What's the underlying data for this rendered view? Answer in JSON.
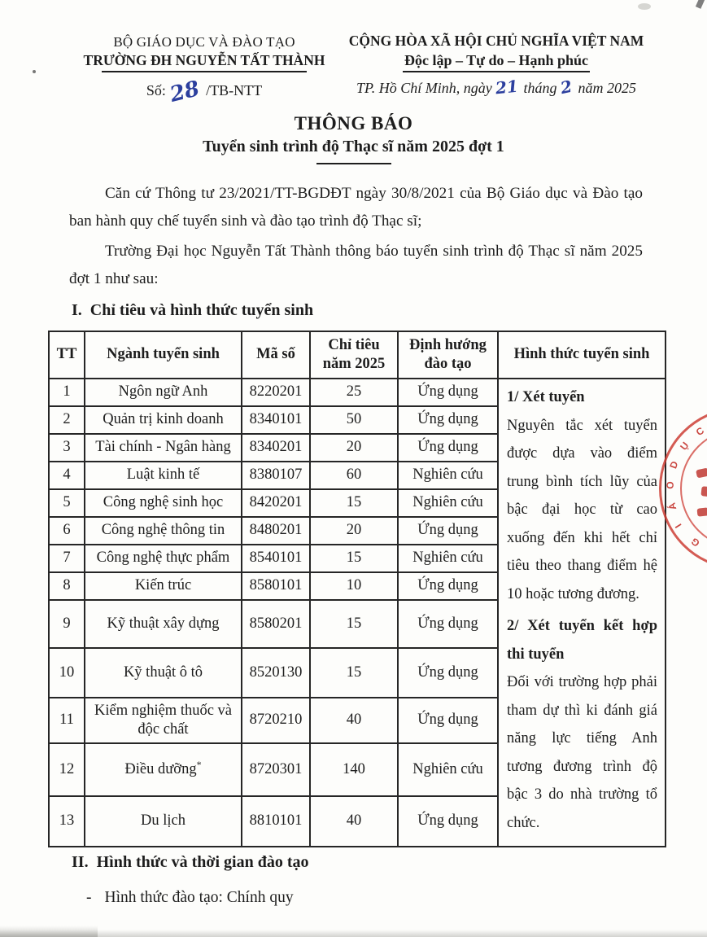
{
  "header": {
    "org": {
      "ministry": "BỘ GIÁO DỤC VÀ ĐÀO TẠO",
      "university": "TRƯỜNG ĐH NGUYỄN TẤT THÀNH",
      "doc_no_prefix": "Số:",
      "doc_no_handwritten": "28",
      "doc_no_suffix": "/TB-NTT"
    },
    "national": {
      "motto_line1": "CỘNG HÒA XÃ HỘI CHỦ NGHĨA VIỆT NAM",
      "motto_line2": "Độc lập – Tự do – Hạnh phúc",
      "date_prefix": "TP. Hồ Chí Minh, ngày",
      "date_day": "21",
      "date_mid": "tháng",
      "date_month": "2",
      "date_suffix": "năm 2025"
    }
  },
  "title": {
    "main": "THÔNG BÁO",
    "subtitle": "Tuyển sinh trình độ Thạc sĩ năm 2025 đợt 1"
  },
  "intro_paragraphs": [
    "Căn cứ Thông tư 23/2021/TT-BGDĐT ngày 30/8/2021 của Bộ Giáo dục và Đào tạo ban hành quy chế tuyển sinh và đào tạo trình độ Thạc sĩ;",
    "Trường Đại học Nguyễn Tất Thành thông báo tuyển sinh trình độ Thạc sĩ năm 2025 đợt 1 như sau:"
  ],
  "section_1": {
    "heading_number": "I.",
    "heading_text": "Chỉ tiêu và hình thức tuyển sinh"
  },
  "table": {
    "headers": {
      "tt": "TT",
      "nganh": "Ngành tuyển sinh",
      "ma_so": "Mã số",
      "chi_tieu": "Chỉ tiêu năm 2025",
      "dinh_huong": "Định hướng đào tạo",
      "hinh_thuc": "Hình thức tuyển sinh"
    },
    "rows": [
      {
        "tt": "1",
        "nganh": "Ngôn ngữ Anh",
        "ma_so": "8220201",
        "chi_tieu": "25",
        "dinh_huong": "Ứng dụng"
      },
      {
        "tt": "2",
        "nganh": "Quản trị kinh doanh",
        "ma_so": "8340101",
        "chi_tieu": "50",
        "dinh_huong": "Ứng dụng"
      },
      {
        "tt": "3",
        "nganh": "Tài chính - Ngân hàng",
        "ma_so": "8340201",
        "chi_tieu": "20",
        "dinh_huong": "Ứng dụng"
      },
      {
        "tt": "4",
        "nganh": "Luật kinh tế",
        "ma_so": "8380107",
        "chi_tieu": "60",
        "dinh_huong": "Nghiên cứu"
      },
      {
        "tt": "5",
        "nganh": "Công nghệ sinh học",
        "ma_so": "8420201",
        "chi_tieu": "15",
        "dinh_huong": "Nghiên cứu"
      },
      {
        "tt": "6",
        "nganh": "Công nghệ thông tin",
        "ma_so": "8480201",
        "chi_tieu": "20",
        "dinh_huong": "Ứng dụng"
      },
      {
        "tt": "7",
        "nganh": "Công nghệ thực phẩm",
        "ma_so": "8540101",
        "chi_tieu": "15",
        "dinh_huong": "Nghiên cứu"
      },
      {
        "tt": "8",
        "nganh": "Kiến trúc",
        "ma_so": "8580101",
        "chi_tieu": "10",
        "dinh_huong": "Ứng dụng"
      },
      {
        "tt": "9",
        "nganh": "Kỹ thuật xây dựng",
        "ma_so": "8580201",
        "chi_tieu": "15",
        "dinh_huong": "Ứng dụng"
      },
      {
        "tt": "10",
        "nganh": "Kỹ thuật ô tô",
        "ma_so": "8520130",
        "chi_tieu": "15",
        "dinh_huong": "Ứng dụng"
      },
      {
        "tt": "11",
        "nganh": "Kiểm nghiệm thuốc và độc chất",
        "ma_so": "8720210",
        "chi_tieu": "40",
        "dinh_huong": "Ứng dụng"
      },
      {
        "tt": "12",
        "nganh": "Điều dưỡng",
        "sup": "*",
        "ma_so": "8720301",
        "chi_tieu": "140",
        "dinh_huong": "Nghiên cứu"
      },
      {
        "tt": "13",
        "nganh": "Du lịch",
        "ma_so": "8810101",
        "chi_tieu": "40",
        "dinh_huong": "Ứng dụng"
      }
    ],
    "admission_methods": [
      {
        "heading": "1/ Xét tuyển",
        "body": "Nguyên tắc xét tuyển được dựa vào điểm trung bình tích lũy của bậc đại học từ cao xuống đến khi hết chỉ tiêu theo thang điểm hệ 10 hoặc tương đương."
      },
      {
        "heading": "2/ Xét tuyển kết hợp thi tuyển",
        "body": "Đối với trường hợp phải tham dự thì ki đánh giá năng lực tiếng Anh tương đương trình độ bậc 3 do nhà trường tổ chức."
      }
    ]
  },
  "section_2": {
    "heading_number": "II.",
    "heading_text": "Hình thức và thời gian đào tạo",
    "bullet_dash": "-",
    "bullet_text": "Hình thức đào tạo: Chính quy"
  },
  "stamp": {
    "letters": [
      "G",
      "I",
      "Á",
      "O",
      "D",
      "Ụ",
      "C"
    ],
    "color": "#cd3e35"
  },
  "colors": {
    "ink_blue": "#2c3f9e",
    "text": "#1d1d1d",
    "stamp_red": "#cd3e35"
  }
}
